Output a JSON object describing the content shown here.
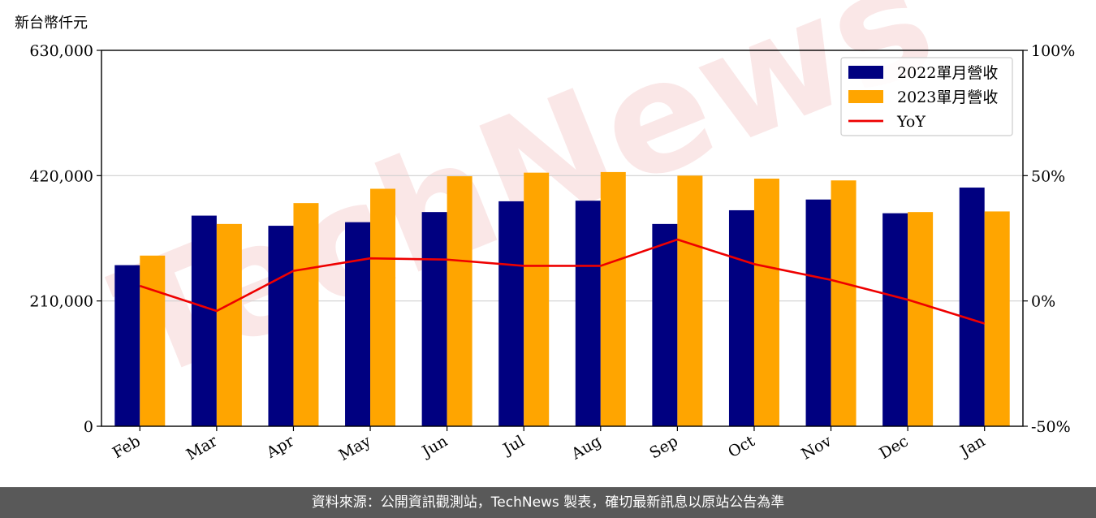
{
  "colors": {
    "series_2022": "#000080",
    "series_2023": "#FFA500",
    "yoy_line": "#EE0000",
    "grid": "#d0d0d0",
    "footer_bg": "#595959",
    "watermark": "#f6d7d7"
  },
  "watermark": "TechNews",
  "footer": {
    "source": "資料來源：公開資訊觀測站，TechNews 製表，確切最新訊息以原站公告為準"
  },
  "chart_data": {
    "type": "bar",
    "unit_label": "新台幣仟元",
    "categories": [
      "Feb",
      "Mar",
      "Apr",
      "May",
      "Jun",
      "Jul",
      "Aug",
      "Sep",
      "Oct",
      "Nov",
      "Dec",
      "Jan"
    ],
    "series": [
      {
        "name": "2022單月營收",
        "type": "bar",
        "axis": "left",
        "values": [
          270000,
          353000,
          336000,
          342000,
          359000,
          377000,
          378000,
          339000,
          362000,
          380000,
          357000,
          400000
        ]
      },
      {
        "name": "2023單月營收",
        "type": "bar",
        "axis": "left",
        "values": [
          286000,
          339000,
          374000,
          398000,
          419000,
          425000,
          426000,
          420000,
          415000,
          412000,
          359000,
          360000
        ]
      },
      {
        "name": "YoY",
        "type": "line",
        "axis": "right",
        "values": [
          6,
          -4,
          12,
          17,
          16.5,
          14,
          14,
          24.5,
          14.7,
          8.4,
          0.5,
          -9
        ]
      }
    ],
    "ylim_left": [
      0,
      630000
    ],
    "yticks_left": [
      {
        "value": 0,
        "label": "0"
      },
      {
        "value": 210000,
        "label": "210,000"
      },
      {
        "value": 420000,
        "label": "420,000"
      },
      {
        "value": 630000,
        "label": "630,000"
      }
    ],
    "ylim_right": [
      -50,
      100
    ],
    "yticks_right": [
      {
        "value": -50,
        "label": "-50%"
      },
      {
        "value": 0,
        "label": "0%"
      },
      {
        "value": 50,
        "label": "50%"
      },
      {
        "value": 100,
        "label": "100%"
      }
    ],
    "grid": "horizontal",
    "legend_position": "top-right"
  }
}
